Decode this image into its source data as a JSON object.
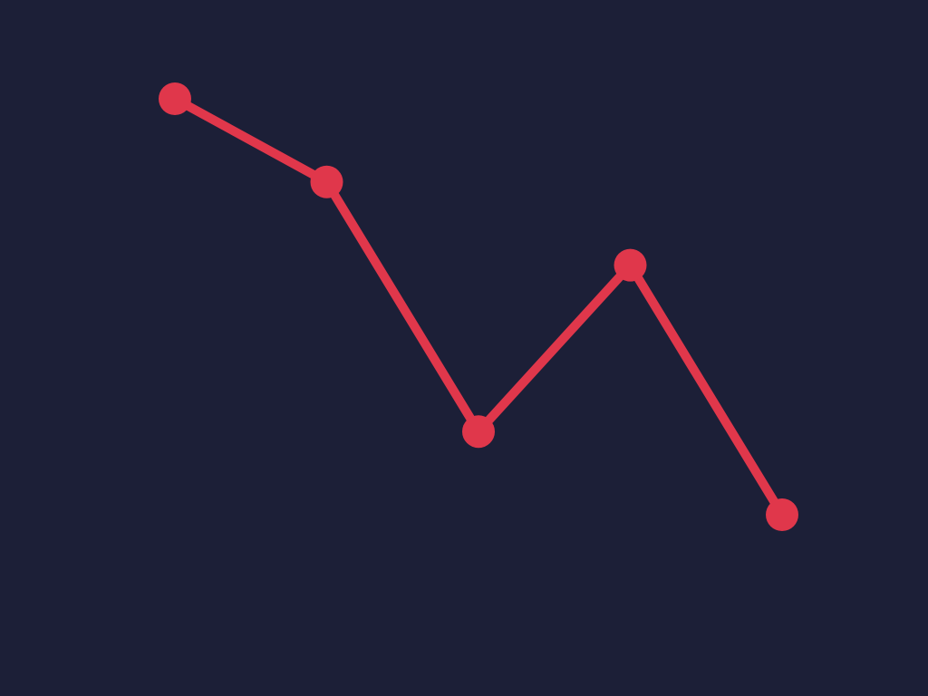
{
  "colors": {
    "background": "#1c1f37",
    "series": "#e0374b"
  },
  "chart_data": {
    "type": "line",
    "title": "",
    "xlabel": "",
    "ylabel": "",
    "grid": false,
    "axes_visible": false,
    "legend": "none",
    "x": [
      1,
      2,
      3,
      4,
      5
    ],
    "xlim": [
      0,
      6
    ],
    "ylim": [
      0,
      7
    ],
    "series": [
      {
        "name": "",
        "values": [
          6,
          5,
          2,
          4,
          1
        ]
      }
    ]
  }
}
